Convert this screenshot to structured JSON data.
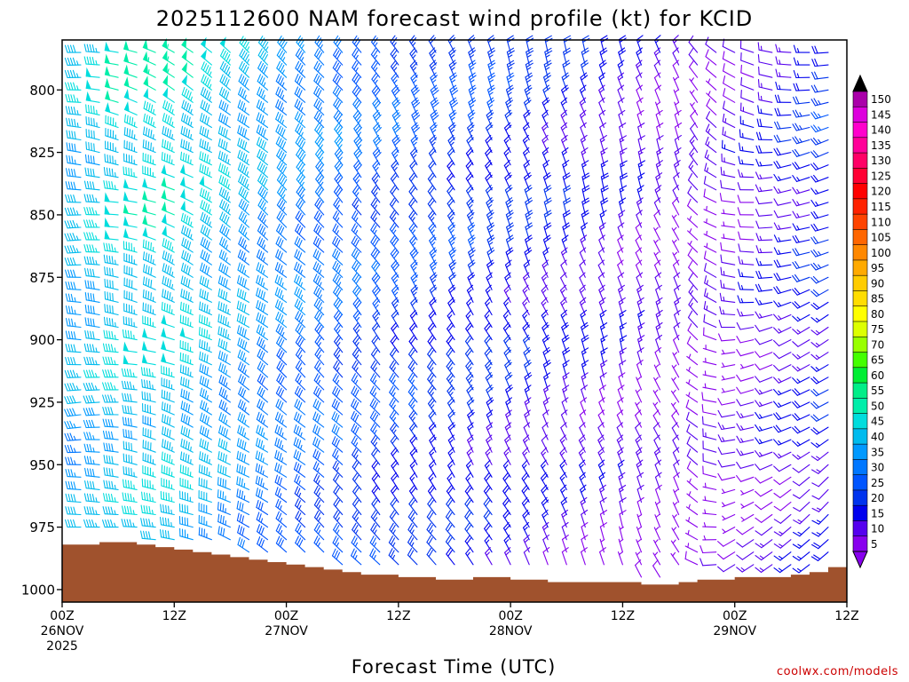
{
  "chart_data": {
    "type": "wind-barb time-height",
    "title": "2025112600 NAM forecast wind profile (kt) for KCID",
    "xlabel": "Forecast Time (UTC)",
    "ylabel": "",
    "x_range_hours": [
      0,
      84
    ],
    "y_range_hpa": [
      780,
      1005
    ],
    "y_ticks": [
      {
        "value": 800,
        "label": "800"
      },
      {
        "value": 825,
        "label": "825"
      },
      {
        "value": 850,
        "label": "850"
      },
      {
        "value": 875,
        "label": "875"
      },
      {
        "value": 900,
        "label": "900"
      },
      {
        "value": 925,
        "label": "925"
      },
      {
        "value": 950,
        "label": "950"
      },
      {
        "value": 975,
        "label": "975"
      },
      {
        "value": 1000,
        "label": "1000"
      }
    ],
    "x_ticks": [
      {
        "hour": 0,
        "line1": "00Z",
        "line2": "26NOV",
        "line3": "2025"
      },
      {
        "hour": 12,
        "line1": "12Z",
        "line2": "",
        "line3": ""
      },
      {
        "hour": 24,
        "line1": "00Z",
        "line2": "27NOV",
        "line3": ""
      },
      {
        "hour": 36,
        "line1": "12Z",
        "line2": "",
        "line3": ""
      },
      {
        "hour": 48,
        "line1": "00Z",
        "line2": "28NOV",
        "line3": ""
      },
      {
        "hour": 60,
        "line1": "12Z",
        "line2": "",
        "line3": ""
      },
      {
        "hour": 72,
        "line1": "00Z",
        "line2": "29NOV",
        "line3": ""
      },
      {
        "hour": 84,
        "line1": "12Z",
        "line2": "",
        "line3": ""
      }
    ],
    "colorbar_levels": [
      {
        "label": "150",
        "color": "#aa00aa"
      },
      {
        "label": "145",
        "color": "#dd00dd"
      },
      {
        "label": "140",
        "color": "#ff00cc"
      },
      {
        "label": "135",
        "color": "#ff0099"
      },
      {
        "label": "130",
        "color": "#ff0066"
      },
      {
        "label": "125",
        "color": "#ff0033"
      },
      {
        "label": "120",
        "color": "#ff0000"
      },
      {
        "label": "115",
        "color": "#ff2200"
      },
      {
        "label": "110",
        "color": "#ff4400"
      },
      {
        "label": "105",
        "color": "#ff6600"
      },
      {
        "label": "100",
        "color": "#ff8800"
      },
      {
        "label": "95",
        "color": "#ffaa00"
      },
      {
        "label": "90",
        "color": "#ffcc00"
      },
      {
        "label": "85",
        "color": "#ffdd00"
      },
      {
        "label": "80",
        "color": "#ffff00"
      },
      {
        "label": "75",
        "color": "#ddff00"
      },
      {
        "label": "70",
        "color": "#99ff00"
      },
      {
        "label": "65",
        "color": "#44ff00"
      },
      {
        "label": "60",
        "color": "#00ee33"
      },
      {
        "label": "55",
        "color": "#00ee88"
      },
      {
        "label": "50",
        "color": "#00eeaa"
      },
      {
        "label": "45",
        "color": "#00dddd"
      },
      {
        "label": "40",
        "color": "#00bbee"
      },
      {
        "label": "35",
        "color": "#0099ff"
      },
      {
        "label": "30",
        "color": "#0077ff"
      },
      {
        "label": "25",
        "color": "#0055ff"
      },
      {
        "label": "20",
        "color": "#0033ee"
      },
      {
        "label": "15",
        "color": "#0000ee"
      },
      {
        "label": "10",
        "color": "#5500ee"
      },
      {
        "label": "5",
        "color": "#8800ee"
      }
    ],
    "colorbar_over_color": "#000000",
    "colorbar_under_color": "#8800ee",
    "surface_pressure_hpa": [
      [
        0,
        982
      ],
      [
        2,
        982
      ],
      [
        4,
        981
      ],
      [
        6,
        981
      ],
      [
        8,
        982
      ],
      [
        10,
        983
      ],
      [
        12,
        984
      ],
      [
        14,
        985
      ],
      [
        16,
        986
      ],
      [
        18,
        987
      ],
      [
        20,
        988
      ],
      [
        22,
        989
      ],
      [
        24,
        990
      ],
      [
        26,
        991
      ],
      [
        28,
        992
      ],
      [
        30,
        993
      ],
      [
        32,
        994
      ],
      [
        34,
        994
      ],
      [
        36,
        995
      ],
      [
        38,
        995
      ],
      [
        40,
        996
      ],
      [
        42,
        996
      ],
      [
        44,
        995
      ],
      [
        46,
        995
      ],
      [
        48,
        996
      ],
      [
        50,
        996
      ],
      [
        52,
        997
      ],
      [
        54,
        997
      ],
      [
        56,
        997
      ],
      [
        58,
        997
      ],
      [
        60,
        997
      ],
      [
        62,
        998
      ],
      [
        64,
        998
      ],
      [
        66,
        997
      ],
      [
        68,
        996
      ],
      [
        70,
        996
      ],
      [
        72,
        995
      ],
      [
        74,
        995
      ],
      [
        76,
        995
      ],
      [
        78,
        994
      ],
      [
        80,
        993
      ],
      [
        82,
        991
      ],
      [
        84,
        990
      ]
    ],
    "surface_color": "#a0522d",
    "barb_columns_hours": "every 2 h from 0 to 84",
    "barb_levels_hpa": "every 5 hPa from 785 to 1000, above surface",
    "wind_profile_keyframes": [
      {
        "hour": 0,
        "upper_speed_kt": 40,
        "upper_dir_deg": 270,
        "lower_speed_kt": 35,
        "lower_dir_deg": 265
      },
      {
        "hour": 6,
        "upper_speed_kt": 48,
        "upper_dir_deg": 285,
        "lower_speed_kt": 40,
        "lower_dir_deg": 270
      },
      {
        "hour": 12,
        "upper_speed_kt": 50,
        "upper_dir_deg": 300,
        "lower_speed_kt": 42,
        "lower_dir_deg": 285
      },
      {
        "hour": 24,
        "upper_speed_kt": 38,
        "upper_dir_deg": 315,
        "lower_speed_kt": 28,
        "lower_dir_deg": 305
      },
      {
        "hour": 36,
        "upper_speed_kt": 28,
        "upper_dir_deg": 330,
        "lower_speed_kt": 20,
        "lower_dir_deg": 320
      },
      {
        "hour": 48,
        "upper_speed_kt": 22,
        "upper_dir_deg": 340,
        "lower_speed_kt": 15,
        "lower_dir_deg": 330
      },
      {
        "hour": 60,
        "upper_speed_kt": 15,
        "upper_dir_deg": 345,
        "lower_speed_kt": 10,
        "lower_dir_deg": 340
      },
      {
        "hour": 66,
        "upper_speed_kt": 10,
        "upper_dir_deg": 340,
        "lower_speed_kt": 7,
        "lower_dir_deg": 330
      },
      {
        "hour": 72,
        "upper_speed_kt": 12,
        "upper_dir_deg": 300,
        "lower_speed_kt": 8,
        "lower_dir_deg": 240
      },
      {
        "hour": 78,
        "upper_speed_kt": 18,
        "upper_dir_deg": 270,
        "lower_speed_kt": 12,
        "lower_dir_deg": 230
      },
      {
        "hour": 84,
        "upper_speed_kt": 25,
        "upper_dir_deg": 255,
        "lower_speed_kt": 15,
        "lower_dir_deg": 220
      }
    ]
  },
  "credit": "coolwx.com/models"
}
